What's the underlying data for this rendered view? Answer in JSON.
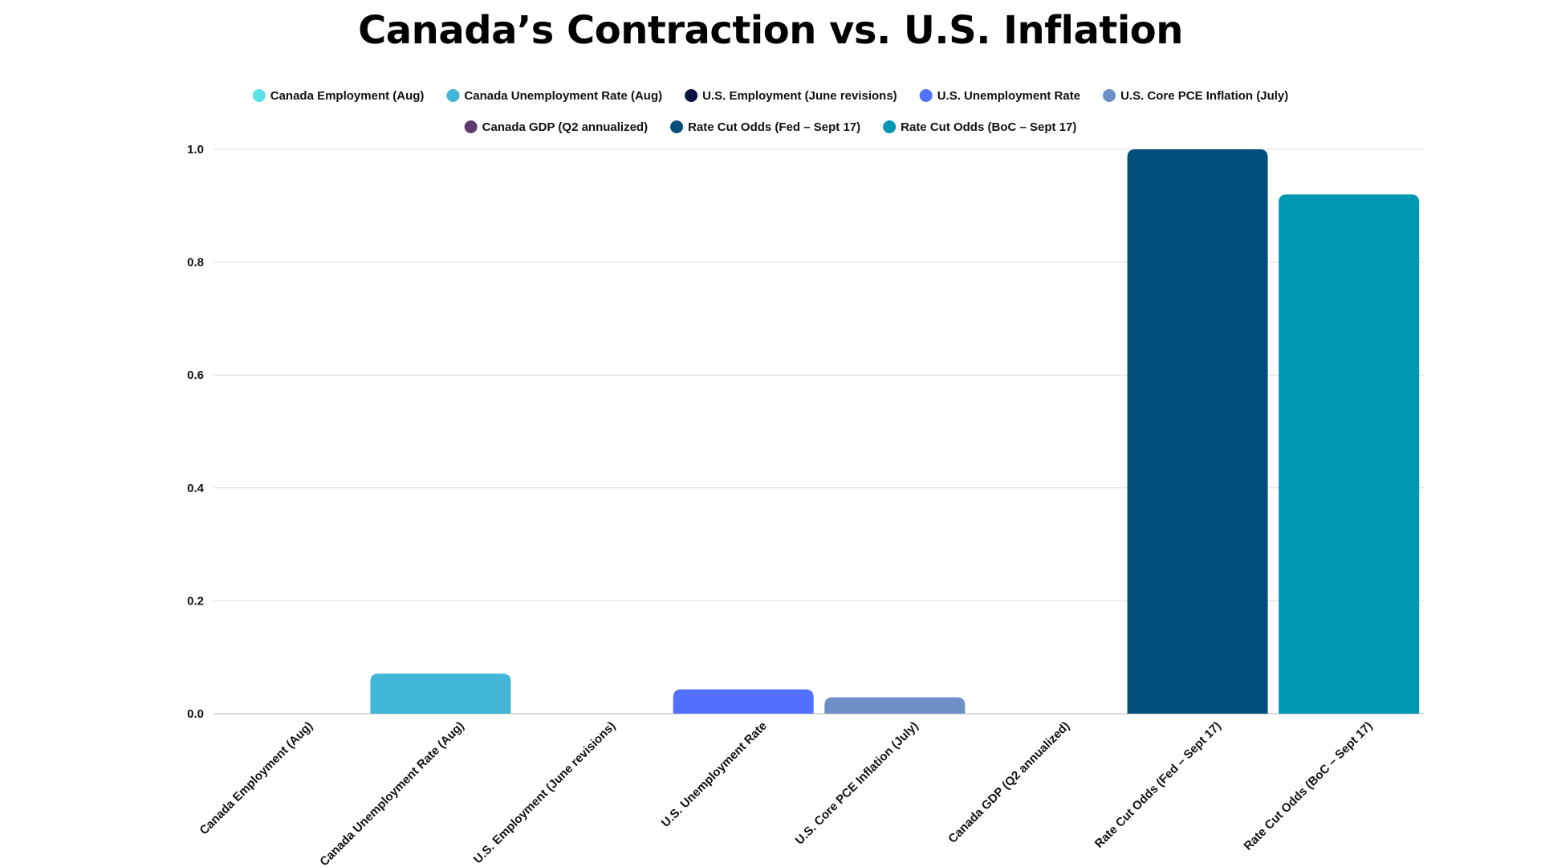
{
  "chart_data": {
    "type": "bar",
    "title": "Canada’s Contraction vs. U.S. Inflation",
    "xlabel": "",
    "ylabel": "",
    "ylim": [
      0,
      1.0
    ],
    "yticks": [
      "0.0",
      "0.2",
      "0.4",
      "0.6",
      "0.8",
      "1.0"
    ],
    "grid": true,
    "legend_position": "top-center",
    "categories": [
      "Canada Employment (Aug)",
      "Canada Unemployment Rate (Aug)",
      "U.S. Employment (June revisions)",
      "U.S. Unemployment Rate",
      "U.S. Core PCE Inflation (July)",
      "Canada GDP (Q2 annualized)",
      "Rate Cut Odds (Fed – Sept 17)",
      "Rate Cut Odds (BoC – Sept 17)"
    ],
    "values": [
      0.0,
      0.071,
      0.0,
      0.043,
      0.029,
      0.0,
      1.0,
      0.92
    ],
    "colors": [
      "#5ce1e6",
      "#41b6d6",
      "#0b1444",
      "#5271ff",
      "#6d8ec6",
      "#5f3a6e",
      "#004f7a",
      "#0097b2"
    ],
    "legend": [
      {
        "label": "Canada Employment (Aug)",
        "color": "#5ce1e6"
      },
      {
        "label": "Canada Unemployment Rate (Aug)",
        "color": "#41b6d6"
      },
      {
        "label": "U.S. Employment (June revisions)",
        "color": "#0b1444"
      },
      {
        "label": "U.S. Unemployment Rate",
        "color": "#5271ff"
      },
      {
        "label": "U.S. Core PCE Inflation (July)",
        "color": "#6d8ec6"
      },
      {
        "label": "Canada GDP (Q2 annualized)",
        "color": "#5f3a6e"
      },
      {
        "label": "Rate Cut Odds (Fed – Sept 17)",
        "color": "#004f7a"
      },
      {
        "label": "Rate Cut Odds (BoC – Sept 17)",
        "color": "#0097b2"
      }
    ]
  }
}
